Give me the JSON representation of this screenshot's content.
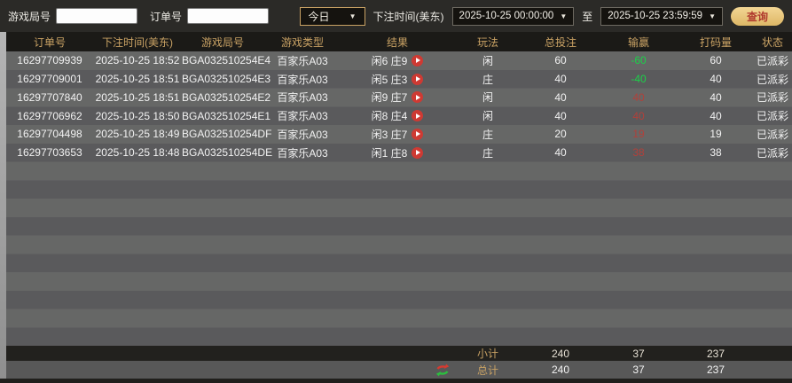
{
  "filters": {
    "game_round_label": "游戏局号",
    "game_round_value": "",
    "order_label": "订单号",
    "order_value": "",
    "range_preset": "今日",
    "bet_time_label": "下注时间(美东)",
    "date_from": "2025-10-25 00:00:00",
    "to_label": "至",
    "date_to": "2025-10-25 23:59:59",
    "query_button": "查询",
    "dropdown_caret": "▼"
  },
  "table": {
    "columns": [
      "订单号",
      "下注时间(美东)",
      "游戏局号",
      "游戏类型",
      "结果",
      "玩法",
      "总投注",
      "输赢",
      "打码量",
      "状态"
    ],
    "rows": [
      {
        "order_id": "16297709939",
        "bet_time": "2025-10-25 18:52",
        "round_id": "BGA032510254E4",
        "game_type": "百家乐A03",
        "result": "闲6 庄9",
        "play": "闲",
        "total_bet": "60",
        "win_loss": "-60",
        "win_loss_color": "green",
        "turnover": "60",
        "status": "已派彩"
      },
      {
        "order_id": "16297709001",
        "bet_time": "2025-10-25 18:51",
        "round_id": "BGA032510254E3",
        "game_type": "百家乐A03",
        "result": "闲5 庄3",
        "play": "庄",
        "total_bet": "40",
        "win_loss": "-40",
        "win_loss_color": "green",
        "turnover": "40",
        "status": "已派彩"
      },
      {
        "order_id": "16297707840",
        "bet_time": "2025-10-25 18:51",
        "round_id": "BGA032510254E2",
        "game_type": "百家乐A03",
        "result": "闲9 庄7",
        "play": "闲",
        "total_bet": "40",
        "win_loss": "40",
        "win_loss_color": "red",
        "turnover": "40",
        "status": "已派彩"
      },
      {
        "order_id": "16297706962",
        "bet_time": "2025-10-25 18:50",
        "round_id": "BGA032510254E1",
        "game_type": "百家乐A03",
        "result": "闲8 庄4",
        "play": "闲",
        "total_bet": "40",
        "win_loss": "40",
        "win_loss_color": "red",
        "turnover": "40",
        "status": "已派彩"
      },
      {
        "order_id": "16297704498",
        "bet_time": "2025-10-25 18:49",
        "round_id": "BGA032510254DF",
        "game_type": "百家乐A03",
        "result": "闲3 庄7",
        "play": "庄",
        "total_bet": "20",
        "win_loss": "19",
        "win_loss_color": "red",
        "turnover": "19",
        "status": "已派彩"
      },
      {
        "order_id": "16297703653",
        "bet_time": "2025-10-25 18:48",
        "round_id": "BGA032510254DE",
        "game_type": "百家乐A03",
        "result": "闲1 庄8",
        "play": "庄",
        "total_bet": "40",
        "win_loss": "38",
        "win_loss_color": "red",
        "turnover": "38",
        "status": "已派彩"
      }
    ],
    "subtotal": {
      "label": "小计",
      "total_bet": "240",
      "win_loss": "37",
      "turnover": "237"
    },
    "grand_total": {
      "label": "总计",
      "total_bet": "240",
      "win_loss": "37",
      "turnover": "237"
    }
  },
  "colors": {
    "accent_gold": "#c9a264",
    "win_red": "#b2403a",
    "loss_green": "#1bd249",
    "summary_red": "#8e2c28",
    "query_button_bg": "#e5c075",
    "query_button_text": "#b03a2e",
    "row_stripe_light": "#666766",
    "row_stripe_dark": "#5a5a5c",
    "header_bg": "#1b1a17"
  }
}
